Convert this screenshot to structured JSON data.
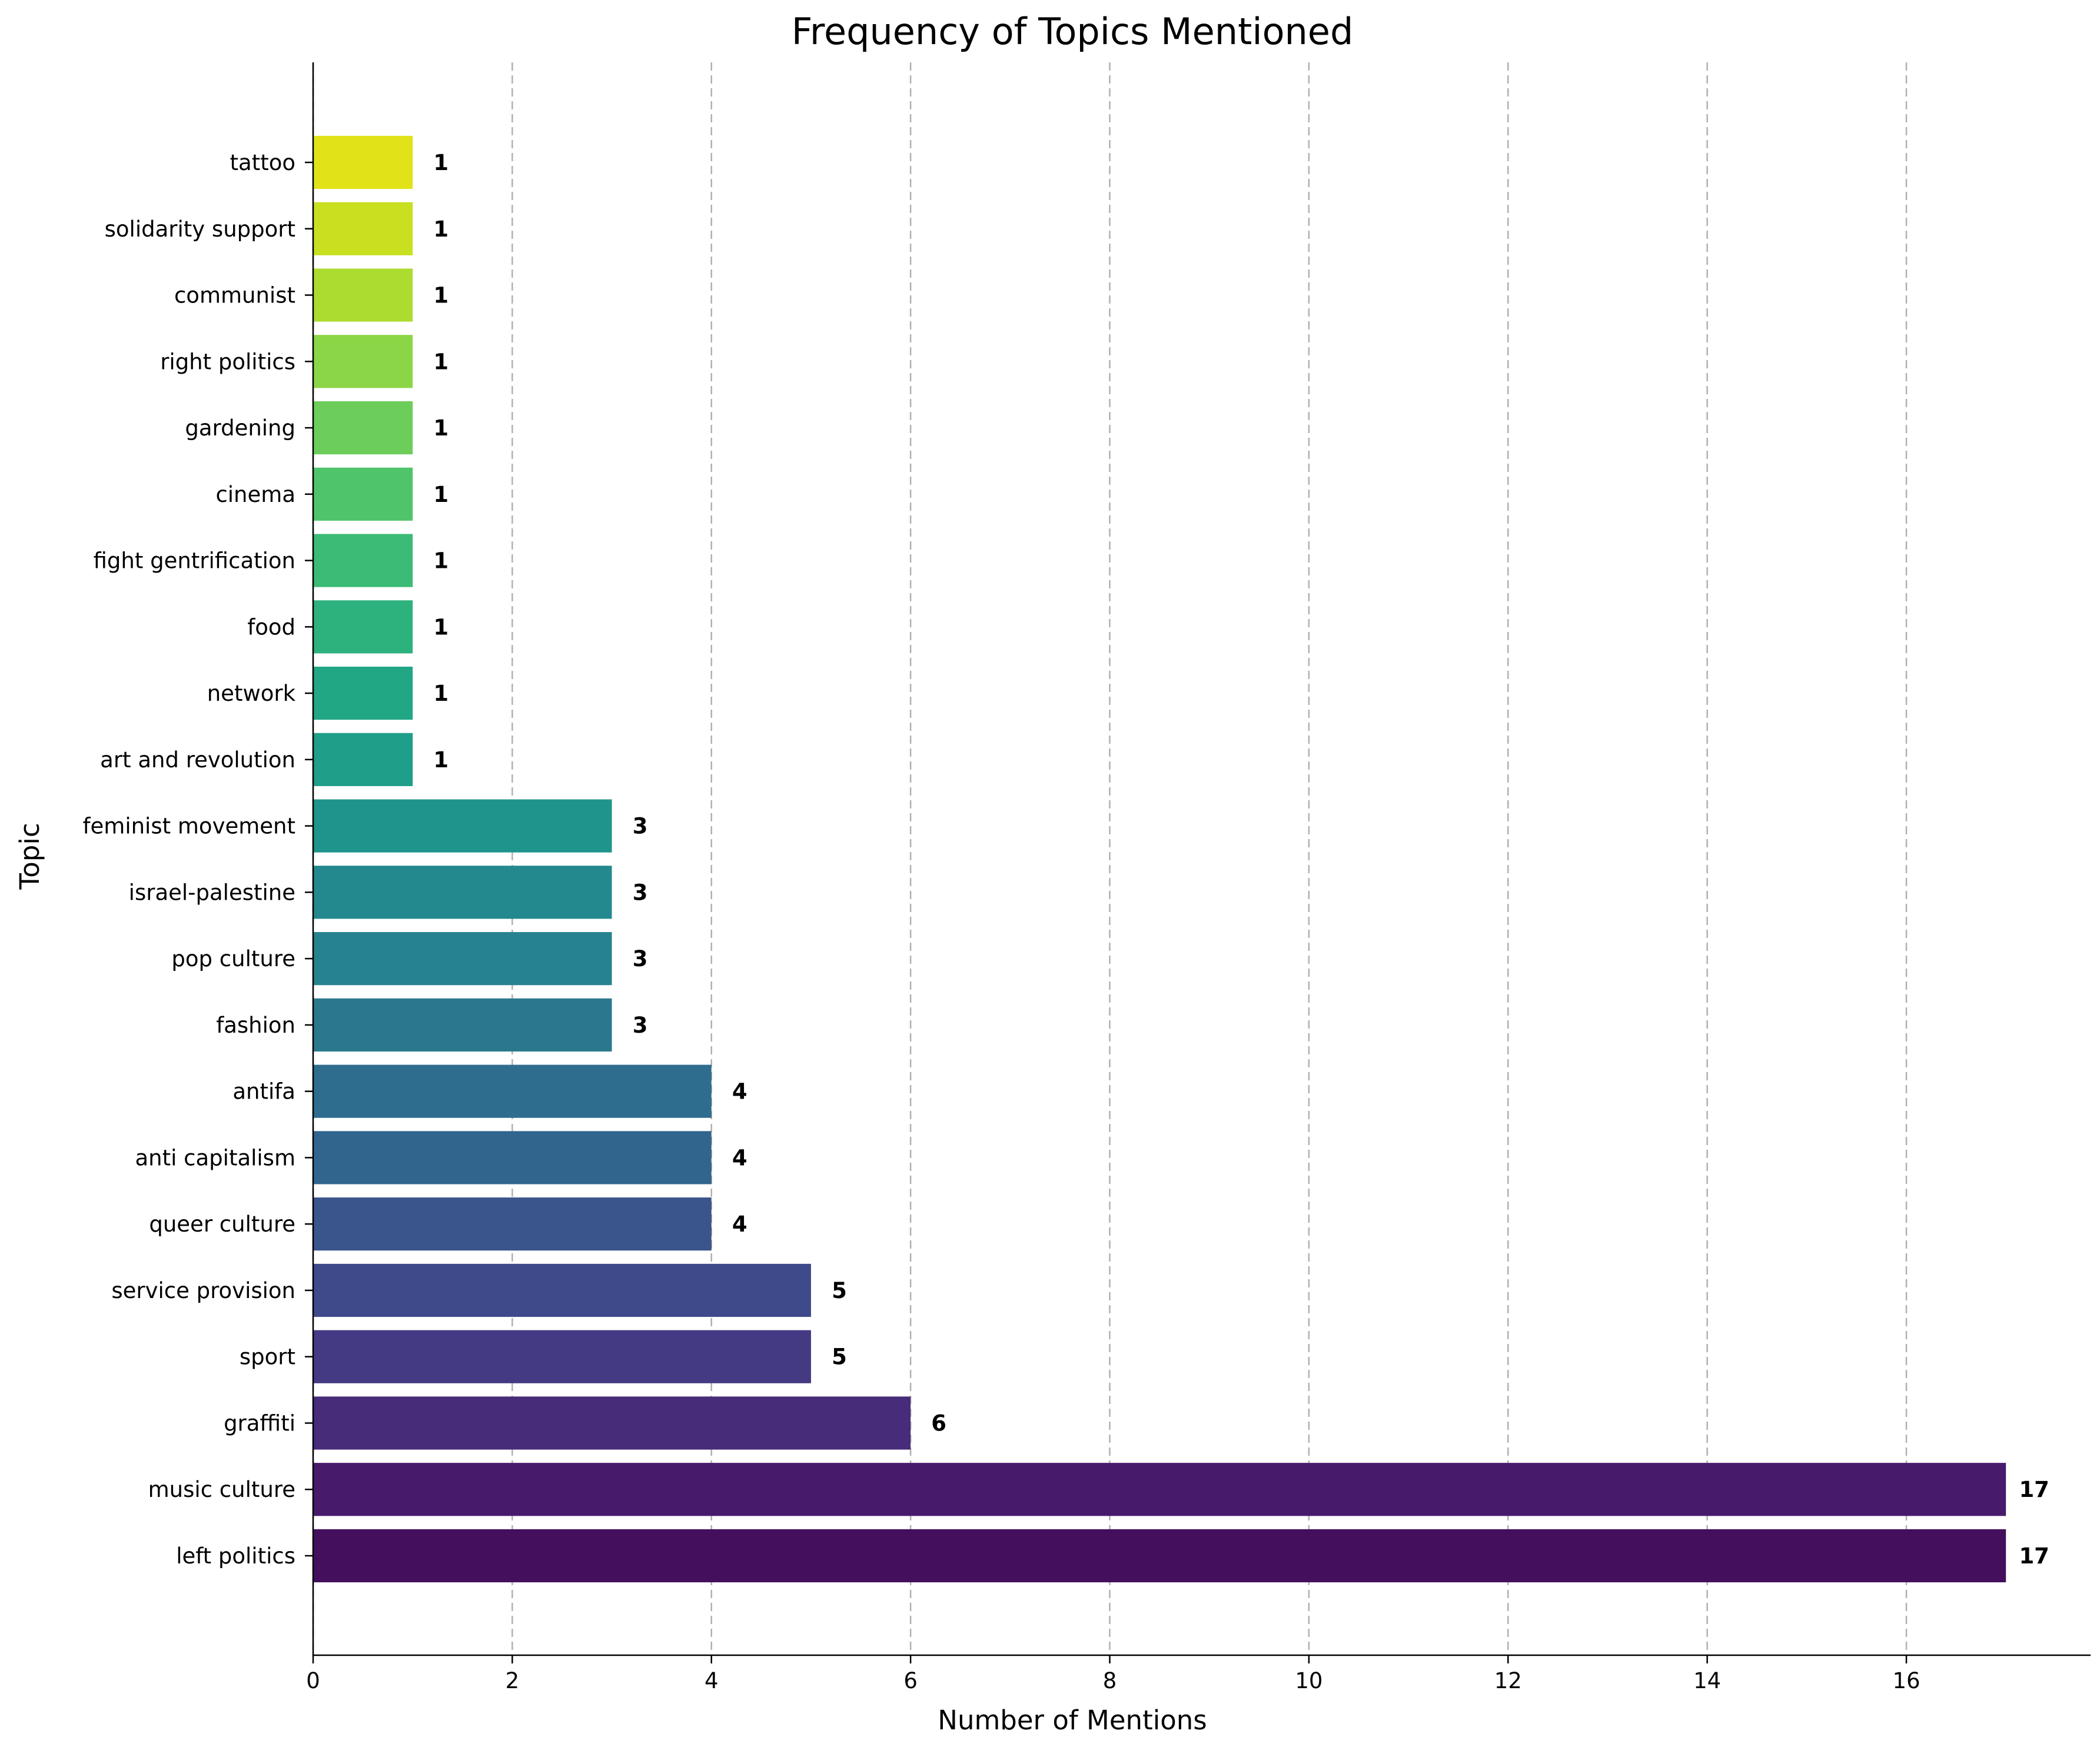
{
  "chart_data": {
    "type": "bar",
    "orientation": "horizontal",
    "title": "Frequency of Topics Mentioned",
    "xlabel": "Number of Mentions",
    "ylabel": "Topic",
    "xlim": [
      0,
      17.85
    ],
    "xticks": [
      0,
      2,
      4,
      6,
      8,
      10,
      12,
      14,
      16
    ],
    "grid": "x-axis, dashed",
    "legend": "none",
    "categories": [
      "left politics",
      "music culture",
      "graffiti",
      "sport",
      "service provision",
      "queer culture",
      "anti capitalism",
      "antifa",
      "fashion",
      "pop culture",
      "israel-palestine",
      "feminist movement",
      "art and revolution",
      "network",
      "food",
      "fight gentrification",
      "cinema",
      "gardening",
      "right politics",
      "communist",
      "solidarity support",
      "tattoo"
    ],
    "values": [
      17,
      17,
      6,
      5,
      5,
      4,
      4,
      4,
      3,
      3,
      3,
      3,
      1,
      1,
      1,
      1,
      1,
      1,
      1,
      1,
      1,
      1
    ],
    "colors": [
      "#440f5d",
      "#481a6c",
      "#472c7a",
      "#443a83",
      "#3e4a89",
      "#3a548c",
      "#32658e",
      "#2e6d8e",
      "#2a788e",
      "#26828e",
      "#23898e",
      "#1f948c",
      "#1f9e89",
      "#22a785",
      "#2db27d",
      "#3bbb75",
      "#50c46a",
      "#6ccd5a",
      "#8bd646",
      "#addc30",
      "#c8e020",
      "#e1e318"
    ]
  }
}
